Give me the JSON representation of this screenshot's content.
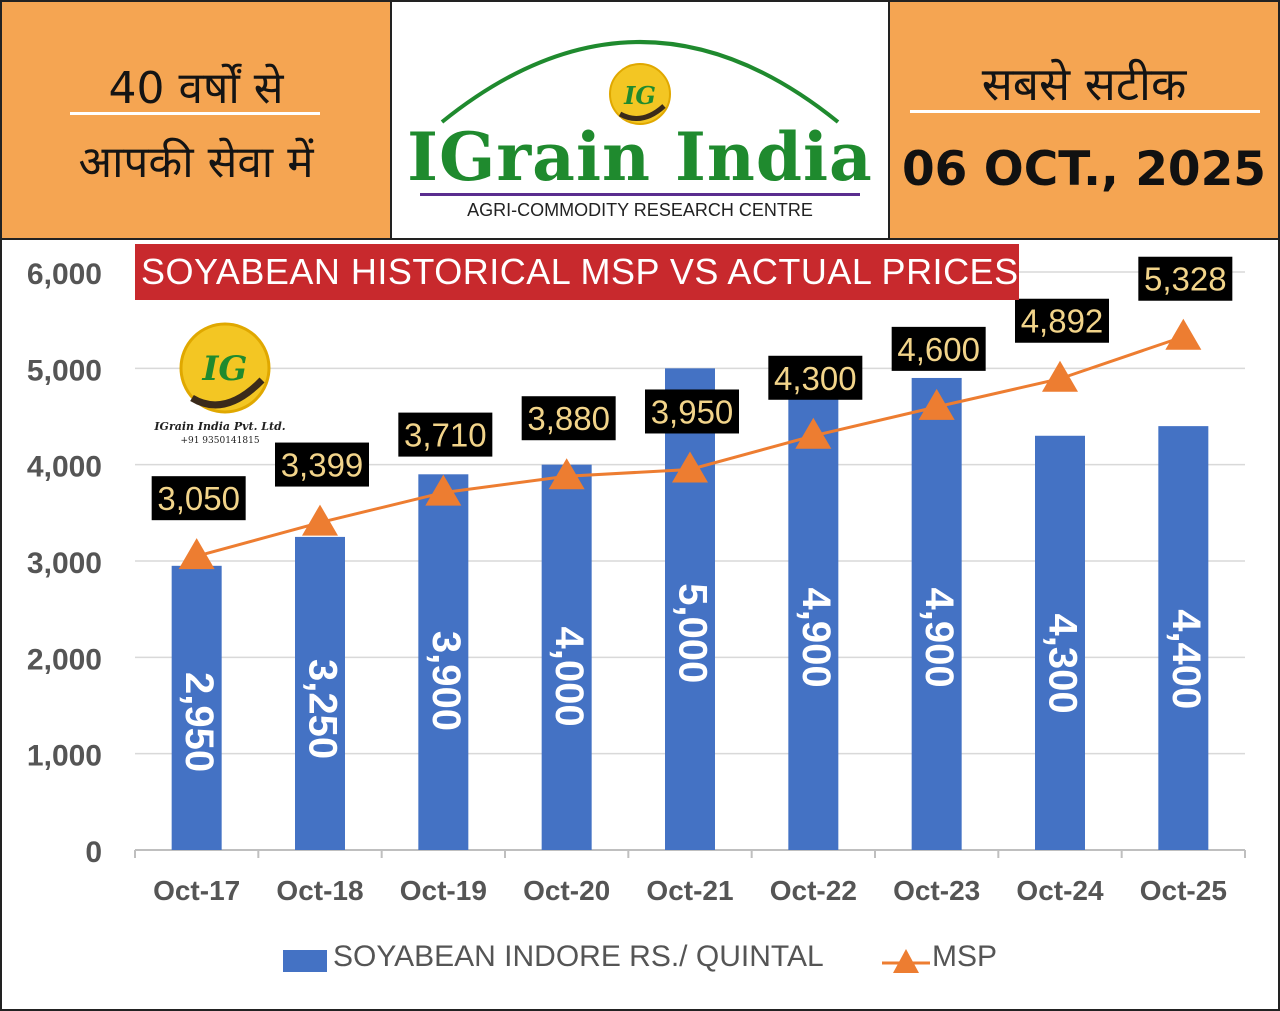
{
  "header": {
    "left_line_1": "40 वर्षों से",
    "left_line_2": "आपकी सेवा में",
    "right_line_1": "सबसे सटीक",
    "date": "06 OCT., 2025",
    "brand_name": "IGrain India",
    "brand_subtitle": "AGRI-COMMODITY RESEARCH CENTRE",
    "logo_initials": "IG",
    "logo_icon": "grain-coin-logo-icon"
  },
  "inner_logo": {
    "initials": "IG",
    "company": "IGrain India Pvt. Ltd.",
    "phone": "+91 9350141815"
  },
  "colors": {
    "bar": "#4472c4",
    "line": "#ed7d31",
    "title_bg": "#c8292d",
    "panel_bg": "#f5a552",
    "brand_green": "#1f8a2e",
    "label_box": "#000000",
    "label_text": "#f2d48a"
  },
  "chart_data": {
    "type": "bar",
    "title": "SOYABEAN HISTORICAL MSP VS ACTUAL PRICES",
    "categories": [
      "Oct-17",
      "Oct-18",
      "Oct-19",
      "Oct-20",
      "Oct-21",
      "Oct-22",
      "Oct-23",
      "Oct-24",
      "Oct-25"
    ],
    "series": [
      {
        "name": "SOYABEAN INDORE RS./ QUINTAL",
        "type": "bar",
        "values": [
          2950,
          3250,
          3900,
          4000,
          5000,
          4900,
          4900,
          4300,
          4400
        ],
        "labels": [
          "2,950",
          "3,250",
          "3,900",
          "4,000",
          "5,000",
          "4,900",
          "4,900",
          "4,300",
          "4,400"
        ]
      },
      {
        "name": "MSP",
        "type": "line",
        "marker": "triangle",
        "values": [
          3050,
          3399,
          3710,
          3880,
          3950,
          4300,
          4600,
          4892,
          5328
        ],
        "labels": [
          "3,050",
          "3,399",
          "3,710",
          "3,880",
          "3,950",
          "4,300",
          "4,600",
          "4,892",
          "5,328"
        ]
      }
    ],
    "ylim": [
      0,
      6000
    ],
    "yticks": [
      0,
      1000,
      2000,
      3000,
      4000,
      5000,
      6000
    ],
    "ytick_labels": [
      "0",
      "1,000",
      "2,000",
      "3,000",
      "4,000",
      "5,000",
      "6,000"
    ],
    "xlabel": "",
    "ylabel": "",
    "grid": true,
    "legend": "bottom"
  }
}
